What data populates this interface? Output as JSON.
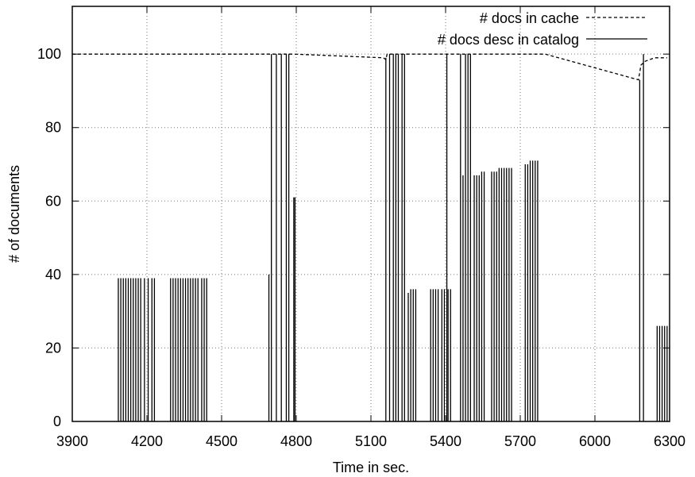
{
  "chart_data": {
    "type": "line",
    "xlabel": "Time in sec.",
    "ylabel": "# of documents",
    "xlim": [
      3900,
      6300
    ],
    "ylim": [
      0,
      113
    ],
    "x_ticks": [
      "3900",
      "4200",
      "4500",
      "4800",
      "5100",
      "5400",
      "5700",
      "6000",
      "6300"
    ],
    "y_ticks": [
      "0",
      "20",
      "40",
      "60",
      "80",
      "100"
    ],
    "grid": true,
    "legend_position": "top-right",
    "series": [
      {
        "name": "# docs in cache",
        "style": "dashed",
        "points": [
          [
            3900,
            100
          ],
          [
            4700,
            100
          ],
          [
            4790,
            100
          ],
          [
            5150,
            99
          ],
          [
            5160,
            98.5
          ],
          [
            5165,
            100
          ],
          [
            5220,
            100
          ],
          [
            5380,
            100
          ],
          [
            5800,
            100
          ],
          [
            6175,
            93
          ],
          [
            6185,
            97
          ],
          [
            6200,
            98
          ],
          [
            6240,
            99
          ],
          [
            6290,
            99
          ]
        ]
      },
      {
        "name": "# docs desc in catalog",
        "style": "solid",
        "impulses": [
          [
            4085,
            39
          ],
          [
            4095,
            39
          ],
          [
            4105,
            39
          ],
          [
            4115,
            39
          ],
          [
            4125,
            39
          ],
          [
            4135,
            39
          ],
          [
            4145,
            39
          ],
          [
            4155,
            39
          ],
          [
            4165,
            39
          ],
          [
            4175,
            39
          ],
          [
            4190,
            39
          ],
          [
            4205,
            39
          ],
          [
            4220,
            39
          ],
          [
            4230,
            39
          ],
          [
            4295,
            39
          ],
          [
            4305,
            39
          ],
          [
            4315,
            39
          ],
          [
            4325,
            39
          ],
          [
            4335,
            39
          ],
          [
            4345,
            39
          ],
          [
            4355,
            39
          ],
          [
            4365,
            39
          ],
          [
            4375,
            39
          ],
          [
            4385,
            39
          ],
          [
            4395,
            39
          ],
          [
            4405,
            39
          ],
          [
            4420,
            39
          ],
          [
            4430,
            39
          ],
          [
            4440,
            39
          ],
          [
            4690,
            40
          ],
          [
            4700,
            100
          ],
          [
            4720,
            100
          ],
          [
            4740,
            100
          ],
          [
            4760,
            100
          ],
          [
            4770,
            100
          ],
          [
            4790,
            61
          ],
          [
            4795,
            61
          ],
          [
            5160,
            99
          ],
          [
            5175,
            100
          ],
          [
            5190,
            100
          ],
          [
            5200,
            100
          ],
          [
            5210,
            100
          ],
          [
            5225,
            100
          ],
          [
            5235,
            100
          ],
          [
            5250,
            35
          ],
          [
            5260,
            36
          ],
          [
            5270,
            36
          ],
          [
            5280,
            36
          ],
          [
            5340,
            36
          ],
          [
            5350,
            36
          ],
          [
            5360,
            36
          ],
          [
            5370,
            36
          ],
          [
            5385,
            36
          ],
          [
            5395,
            36
          ],
          [
            5405,
            100
          ],
          [
            5410,
            36
          ],
          [
            5420,
            36
          ],
          [
            5460,
            100
          ],
          [
            5470,
            67
          ],
          [
            5480,
            100
          ],
          [
            5490,
            100
          ],
          [
            5500,
            100
          ],
          [
            5515,
            67
          ],
          [
            5525,
            67
          ],
          [
            5535,
            67
          ],
          [
            5545,
            68
          ],
          [
            5555,
            68
          ],
          [
            5585,
            68
          ],
          [
            5595,
            68
          ],
          [
            5605,
            68
          ],
          [
            5615,
            69
          ],
          [
            5625,
            69
          ],
          [
            5635,
            69
          ],
          [
            5645,
            69
          ],
          [
            5655,
            69
          ],
          [
            5665,
            69
          ],
          [
            5720,
            70
          ],
          [
            5730,
            70
          ],
          [
            5740,
            71
          ],
          [
            5750,
            71
          ],
          [
            5760,
            71
          ],
          [
            5770,
            71
          ],
          [
            6180,
            93
          ],
          [
            6195,
            100
          ],
          [
            6250,
            26
          ],
          [
            6260,
            26
          ],
          [
            6270,
            26
          ],
          [
            6280,
            26
          ],
          [
            6290,
            26
          ]
        ]
      }
    ]
  }
}
